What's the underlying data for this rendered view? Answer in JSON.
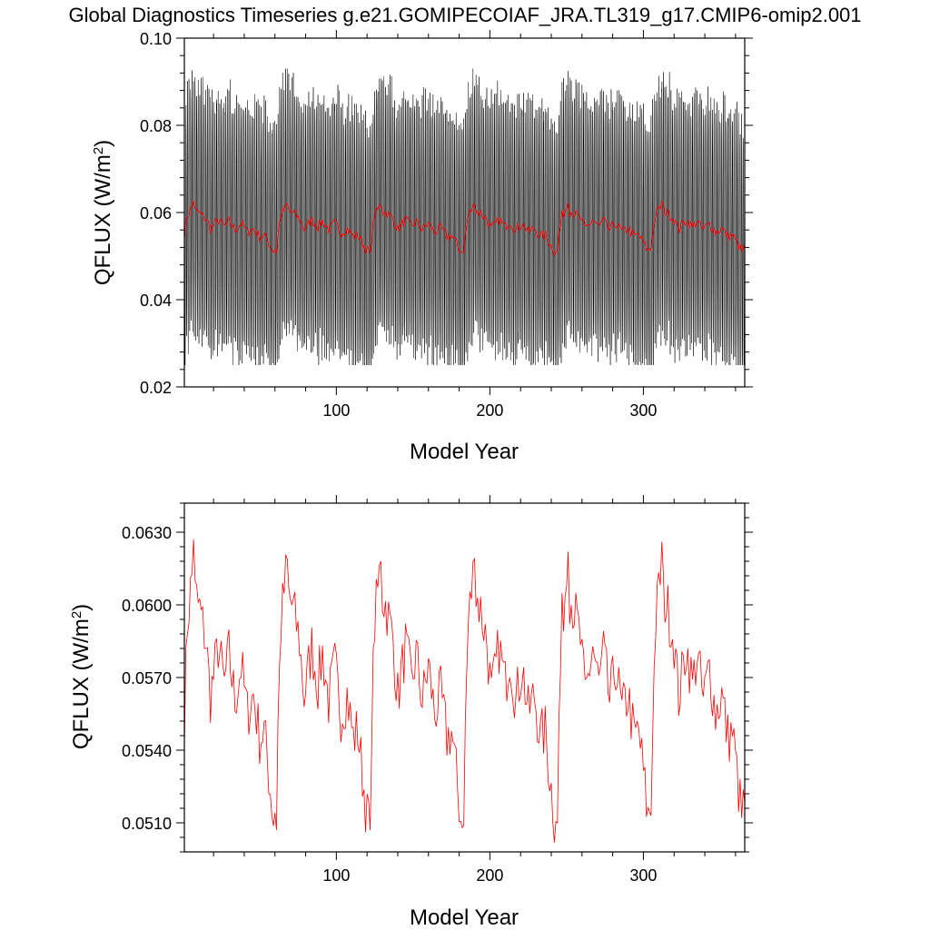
{
  "title": "Global Diagnostics Timeseries g.e21.GOMIPECOIAF_JRA.TL319_g17.CMIP6-omip2.001",
  "colors": {
    "monthly": "#000000",
    "annual": "#ff0000",
    "axes": "#000000"
  },
  "chart_data": [
    {
      "type": "line",
      "xlabel": "Model Year",
      "ylabel": "QFLUX (W/m2)",
      "xlim": [
        1,
        366
      ],
      "ylim": [
        0.02,
        0.1
      ],
      "x_ticks": [
        100,
        200,
        300
      ],
      "x_tick_labels": [
        "100",
        "200",
        "300"
      ],
      "y_ticks": [
        0.02,
        0.04,
        0.06,
        0.08,
        0.1
      ],
      "y_tick_labels": [
        "0.02",
        "0.04",
        "0.06",
        "0.08",
        "0.10"
      ],
      "grid": false,
      "series": [
        {
          "color": "#000000",
          "resolution": "monthly",
          "description_of_envelope": {
            "typical_min": 0.03,
            "typical_max": 0.088,
            "extreme_min": 0.025,
            "extreme_max": 0.093
          }
        },
        {
          "color": "#ff0000",
          "resolution": "annual",
          "same_as": "chart 2 series"
        }
      ]
    },
    {
      "type": "line",
      "xlabel": "Model Year",
      "ylabel": "QFLUX (W/m2)",
      "xlim": [
        1,
        366
      ],
      "ylim": [
        0.0498,
        0.0642
      ],
      "x_ticks": [
        100,
        200,
        300
      ],
      "x_tick_labels": [
        "100",
        "200",
        "300"
      ],
      "y_ticks": [
        0.051,
        0.054,
        0.057,
        0.06,
        0.063
      ],
      "y_tick_labels": [
        "0.0510",
        "0.0540",
        "0.0570",
        "0.0600",
        "0.0630"
      ],
      "grid": false,
      "cycle_years": 61,
      "cycle_starts": [
        1,
        62,
        123,
        184,
        245,
        306
      ],
      "cycle_profile_years": [
        0,
        2,
        5,
        7,
        10,
        14,
        17,
        19,
        22,
        26,
        29,
        33,
        37,
        41,
        45,
        49,
        52,
        55,
        58,
        60
      ],
      "cycle_profile_values": [
        0.0552,
        0.0593,
        0.0612,
        0.0604,
        0.0598,
        0.0585,
        0.0562,
        0.057,
        0.0583,
        0.0567,
        0.058,
        0.056,
        0.0575,
        0.0555,
        0.0563,
        0.0545,
        0.0548,
        0.053,
        0.0512,
        0.052
      ],
      "annual_peaks": [
        {
          "x": 7,
          "y": 0.0627
        },
        {
          "x": 68,
          "y": 0.0619
        },
        {
          "x": 129,
          "y": 0.0618
        },
        {
          "x": 190,
          "y": 0.0619
        },
        {
          "x": 251,
          "y": 0.0622
        },
        {
          "x": 312,
          "y": 0.0626
        }
      ],
      "annual_minima": [
        {
          "x": 61,
          "y": 0.0507
        },
        {
          "x": 122,
          "y": 0.0507
        },
        {
          "x": 183,
          "y": 0.0509
        },
        {
          "x": 244,
          "y": 0.051
        },
        {
          "x": 305,
          "y": 0.0513
        },
        {
          "x": 366,
          "y": 0.0518
        }
      ]
    }
  ]
}
